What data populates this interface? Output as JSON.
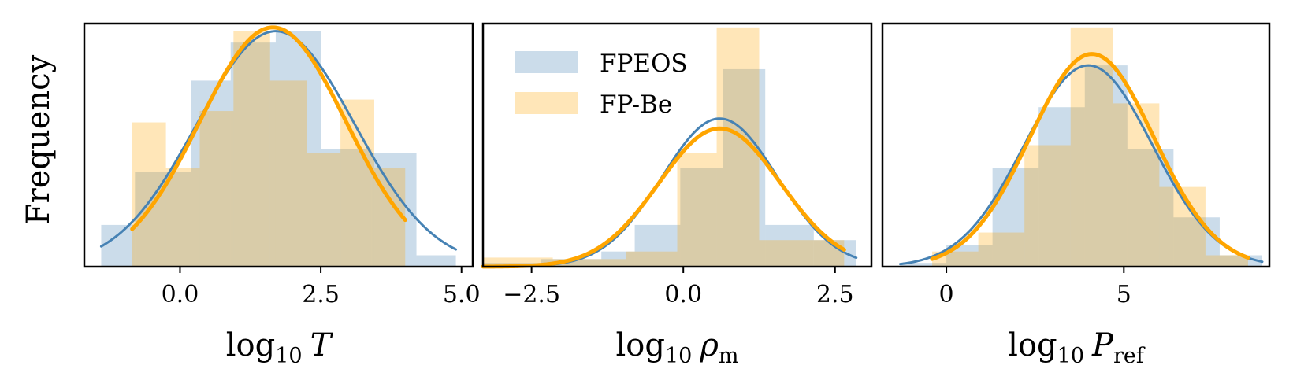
{
  "figure": {
    "ylabel": "Frequency",
    "legend": {
      "location": "upper-left of middle panel",
      "entries": [
        {
          "name": "FPEOS",
          "color": "#4682b4"
        },
        {
          "name": "FP-Be",
          "color": "#ffa500"
        }
      ]
    }
  },
  "chart_data": [
    {
      "type": "bar",
      "id": "panel-T",
      "xlabel_base": "log",
      "xlabel_sub": "10",
      "xlabel_var": "T",
      "xlabel_var_sub": "",
      "xlim": [
        -1.7,
        5.2
      ],
      "ylim": [
        0,
        0.32
      ],
      "xticks": [
        0.0,
        2.5,
        5.0
      ],
      "xtick_labels": [
        "0.0",
        "2.5",
        "5.0"
      ],
      "series": [
        {
          "name": "FPEOS",
          "color": "#4682b4",
          "edges": [
            -1.4,
            -0.8,
            0.2,
            0.9,
            1.7,
            2.5,
            3.4,
            4.2,
            4.9
          ],
          "heights": [
            0.055,
            0.125,
            0.245,
            0.295,
            0.31,
            0.155,
            0.15,
            0.015
          ],
          "fit": {
            "mu": 1.7,
            "sigma": 1.4,
            "peak": 0.31,
            "range": [
              -1.4,
              4.9
            ]
          }
        },
        {
          "name": "FP-Be",
          "color": "#ffa500",
          "edges": [
            -0.85,
            -0.25,
            0.35,
            0.95,
            1.6,
            2.25,
            2.85,
            3.45,
            4.0
          ],
          "heights": [
            0.19,
            0.13,
            0.205,
            0.31,
            0.245,
            0.15,
            0.22,
            0.13
          ],
          "fit": {
            "mu": 1.65,
            "sigma": 1.3,
            "peak": 0.315,
            "range": [
              -0.85,
              4.0
            ]
          }
        }
      ]
    },
    {
      "type": "bar",
      "id": "panel-rho",
      "xlabel_base": "log",
      "xlabel_sub": "10",
      "xlabel_var": "ρ",
      "xlabel_var_sub": "m",
      "xlim": [
        -3.3,
        3.1
      ],
      "ylim": [
        0,
        0.32
      ],
      "xticks": [
        -2.5,
        0.0,
        2.5
      ],
      "xtick_labels": [
        "−2.5",
        "0.0",
        "2.5"
      ],
      "series": [
        {
          "name": "FPEOS",
          "color": "#4682b4",
          "edges": [
            -3.3,
            -2.35,
            -1.35,
            -0.8,
            -0.05,
            0.65,
            1.35,
            2.15,
            2.85
          ],
          "heights": [
            0.005,
            0.01,
            0.02,
            0.055,
            0.13,
            0.26,
            0.055,
            0.035
          ],
          "fit": {
            "mu": 0.6,
            "sigma": 0.95,
            "peak": 0.195,
            "range": [
              -3.3,
              2.85
            ]
          }
        },
        {
          "name": "FP-Be",
          "color": "#ffa500",
          "edges": [
            -3.3,
            -2.15,
            -0.95,
            -0.1,
            0.55,
            1.25,
            2.15,
            2.65
          ],
          "heights": [
            0.012,
            0.01,
            0.02,
            0.15,
            0.315,
            0.035,
            0.035
          ],
          "fit": {
            "mu": 0.6,
            "sigma": 1.0,
            "peak": 0.182,
            "range": [
              -3.3,
              2.65
            ]
          }
        }
      ]
    },
    {
      "type": "bar",
      "id": "panel-P",
      "xlabel_base": "log",
      "xlabel_sub": "10",
      "xlabel_var": "P",
      "xlabel_var_sub": "ref",
      "xlim": [
        -1.8,
        9.1
      ],
      "ylim": [
        0,
        0.32
      ],
      "xticks": [
        0,
        5
      ],
      "xtick_labels": [
        "0",
        "5"
      ],
      "series": [
        {
          "name": "FPEOS",
          "color": "#4682b4",
          "edges": [
            -1.3,
            0.0,
            1.3,
            2.6,
            3.9,
            5.1,
            6.4,
            7.7,
            8.9
          ],
          "heights": [
            0.005,
            0.028,
            0.13,
            0.21,
            0.265,
            0.155,
            0.065,
            0.015
          ],
          "fit": {
            "mu": 4.0,
            "sigma": 1.8,
            "peak": 0.265,
            "range": [
              -1.3,
              8.9
            ]
          }
        },
        {
          "name": "FP-Be",
          "color": "#ffa500",
          "edges": [
            -0.4,
            0.9,
            2.2,
            3.5,
            4.7,
            6.0,
            7.3,
            8.5
          ],
          "heights": [
            0.02,
            0.045,
            0.16,
            0.315,
            0.215,
            0.105,
            0.015
          ],
          "fit": {
            "mu": 4.1,
            "sigma": 1.75,
            "peak": 0.28,
            "range": [
              -0.4,
              8.5
            ]
          }
        }
      ]
    }
  ]
}
